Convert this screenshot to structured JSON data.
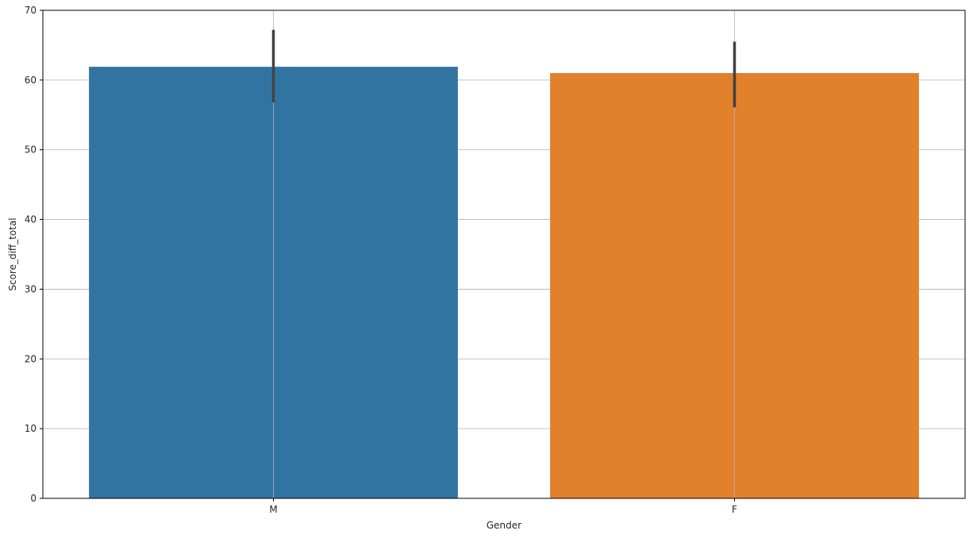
{
  "chart_data": {
    "type": "bar",
    "title": "",
    "xlabel": "Gender",
    "ylabel": "Score_diff_total",
    "categories": [
      "M",
      "F"
    ],
    "values": [
      61.9,
      61.0
    ],
    "error_bars": [
      {
        "low": 56.8,
        "high": 67.2
      },
      {
        "low": 56.1,
        "high": 65.5
      }
    ],
    "ylim": [
      0,
      70
    ],
    "yticks": [
      0,
      10,
      20,
      30,
      40,
      50,
      60,
      70
    ],
    "grid": true,
    "colors": [
      "#3274a1",
      "#e1812c"
    ],
    "errorbar_color": "#424242",
    "grid_color": "#b0b0b0"
  }
}
